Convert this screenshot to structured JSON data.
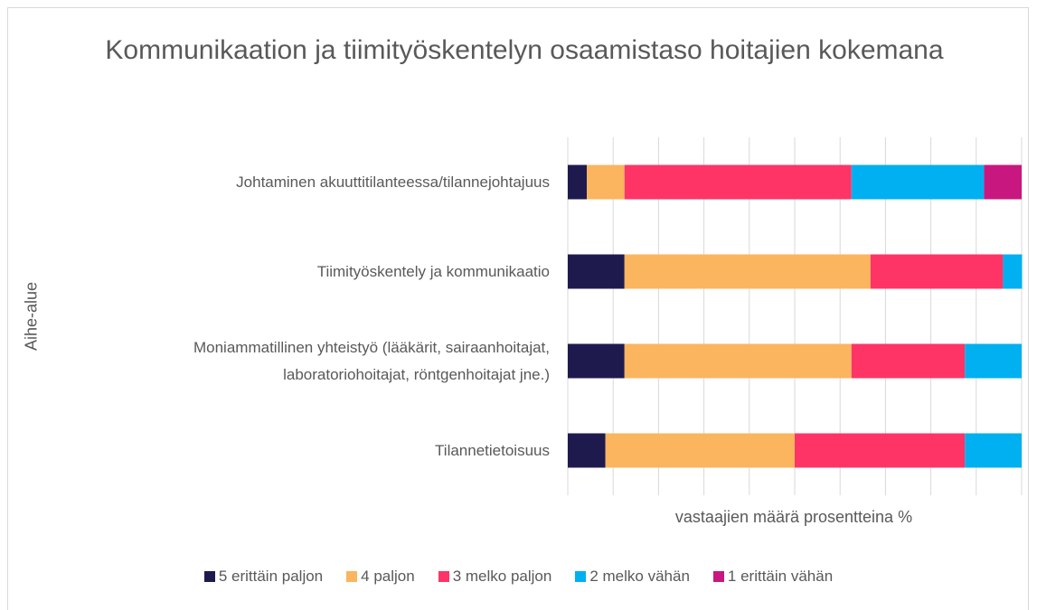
{
  "chart_data": {
    "type": "stacked_bar_horizontal",
    "title": "Kommunikaation ja tiimityöskentelyn osaamistaso hoitajien kokemana",
    "x_label": "vastaajien määrä prosentteina %",
    "y_label": "Aihe-alue",
    "categories": [
      "Johtaminen akuuttitilanteessa/tilannejohtajuus",
      "Tiimityöskentely ja kommunikaatio",
      "Moniammatillinen yhteistyö (lääkärit, sairaanhoitajat,\nlaboratoriohoitajat, röntgenhoitajat jne.)",
      "Tilannetietoisuus"
    ],
    "series": [
      {
        "name": "5 erittäin paljon",
        "color": "#1f1a4e",
        "values": [
          4.2,
          12.5,
          12.5,
          8.3
        ]
      },
      {
        "name": "4 paljon",
        "color": "#fbb55f",
        "values": [
          8.3,
          54.2,
          50,
          41.7
        ]
      },
      {
        "name": "3 melko paljon",
        "color": "#fe3466",
        "values": [
          50,
          29.2,
          25,
          37.5
        ]
      },
      {
        "name": "2 melko vähän",
        "color": "#00b0f0",
        "values": [
          29.2,
          4.2,
          12.5,
          12.5
        ]
      },
      {
        "name": "1 erittäin vähän",
        "color": "#c8177e",
        "values": [
          8.3,
          0,
          0,
          0
        ]
      }
    ],
    "xlim": [
      0,
      100
    ],
    "xticks": [
      0,
      10,
      20,
      30,
      40,
      50,
      60,
      70,
      80,
      90,
      100
    ],
    "grid": true,
    "legend": "bottom"
  }
}
